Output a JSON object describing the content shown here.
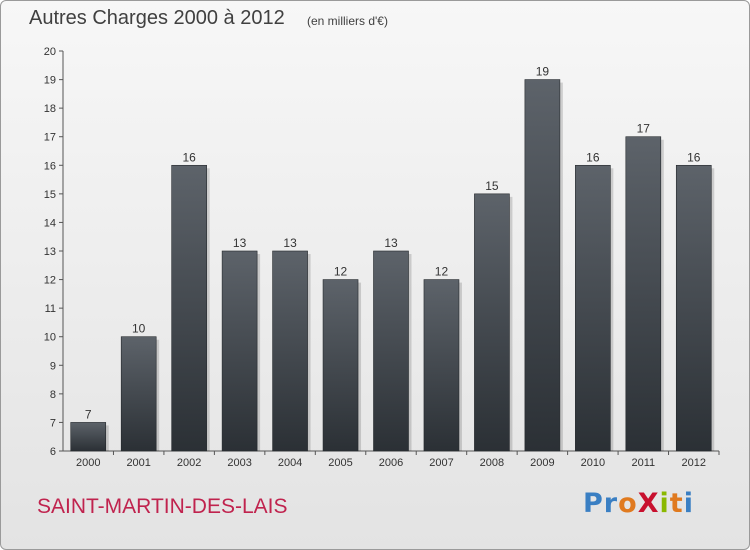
{
  "header": {
    "title": "Autres Charges 2000 à 2012",
    "unit_note": "(en milliers d'€)"
  },
  "footer": {
    "commune": "SAINT-MARTIN-DES-LAIS",
    "logo": {
      "text": "ProXiti",
      "letter_colors": [
        "#3a7fc3",
        "#3a7fc3",
        "#e07a1f",
        "#c8102e",
        "#8ab800",
        "#e07a1f",
        "#3a7fc3"
      ]
    }
  },
  "colors": {
    "bar_top": "#5d636a",
    "bar_bottom": "#2b3035",
    "commune": "#c0234e",
    "text": "#404040"
  },
  "chart_data": {
    "type": "bar",
    "title": "Autres Charges 2000 à 2012",
    "subtitle": "(en milliers d'€)",
    "categories": [
      "2000",
      "2001",
      "2002",
      "2003",
      "2004",
      "2005",
      "2006",
      "2007",
      "2008",
      "2009",
      "2010",
      "2011",
      "2012"
    ],
    "values": [
      7,
      10,
      16,
      13,
      13,
      12,
      13,
      12,
      15,
      19,
      16,
      17,
      16
    ],
    "data_labels": [
      "7",
      "10",
      "16",
      "13",
      "13",
      "12",
      "13",
      "12",
      "15",
      "19",
      "16",
      "17",
      "16"
    ],
    "ylim": [
      6,
      20
    ],
    "yticks": [
      6,
      7,
      8,
      9,
      10,
      11,
      12,
      13,
      14,
      15,
      16,
      17,
      18,
      19,
      20
    ],
    "ytick_labels": [
      "6",
      "7",
      "8",
      "9",
      "10",
      "11",
      "12",
      "13",
      "14",
      "15",
      "16",
      "17",
      "18",
      "19",
      "20"
    ],
    "grid": false,
    "legend": "none"
  }
}
